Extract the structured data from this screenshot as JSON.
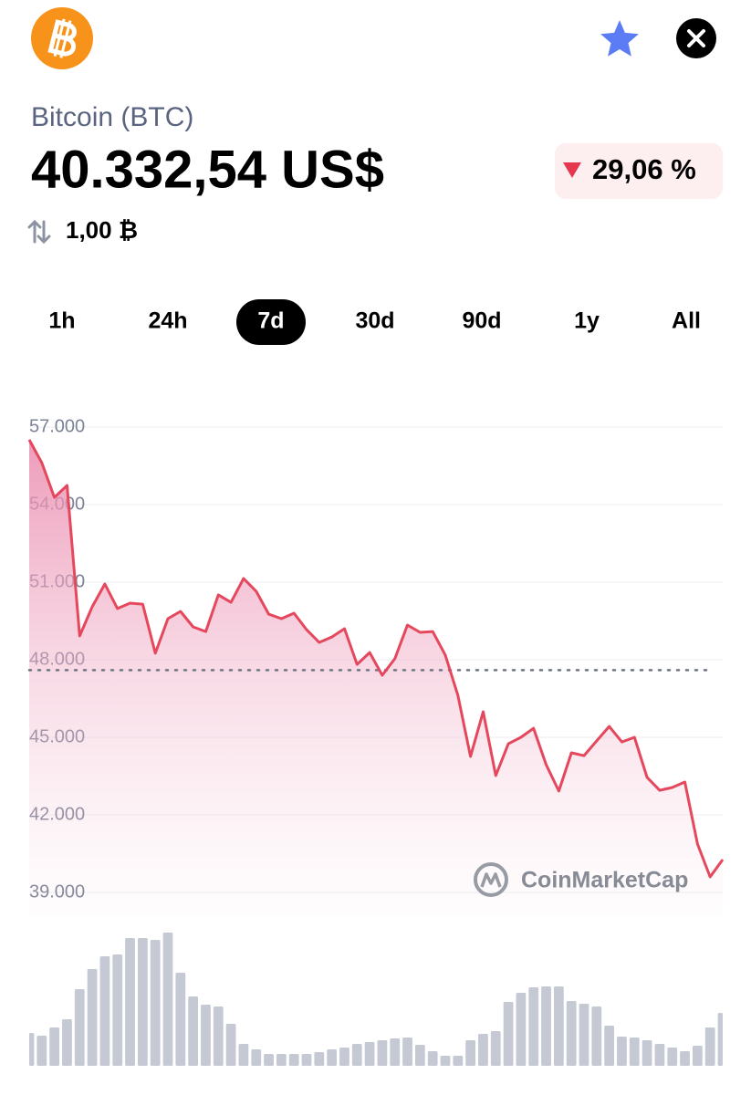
{
  "header": {
    "name": "Bitcoin (BTC)",
    "price": "40.332,54 US$",
    "change": "29,06 %",
    "conversion": "1,00 ₿"
  },
  "tabs": [
    "1h",
    "24h",
    "7d",
    "30d",
    "90d",
    "1y",
    "All"
  ],
  "selected_tab": 2,
  "chart_data": [
    {
      "type": "line",
      "color": "#e5485d",
      "grid": true,
      "watermark": "CoinMarketCap",
      "values": [
        56510,
        55620,
        54280,
        54740,
        48920,
        50050,
        50930,
        49980,
        50190,
        50150,
        48250,
        49590,
        49870,
        49270,
        49090,
        50510,
        50220,
        51140,
        50650,
        49760,
        49590,
        49800,
        49160,
        48670,
        48880,
        49200,
        47820,
        48280,
        47400,
        48040,
        49340,
        49060,
        49090,
        48180,
        46620,
        44260,
        45990,
        43520,
        44750,
        45000,
        45350,
        43940,
        42920,
        44400,
        44290,
        44860,
        45420,
        44820,
        45000,
        43450,
        42950,
        43060,
        43270,
        40870,
        39600,
        40270
      ],
      "reference_line": 47600,
      "ylim": [
        39000,
        57000
      ],
      "yticks": [
        {
          "value": 39000,
          "label": "39.000"
        },
        {
          "value": 42000,
          "label": "42.000"
        },
        {
          "value": 45000,
          "label": "45.000"
        },
        {
          "value": 48000,
          "label": "48.000"
        },
        {
          "value": 51000,
          "label": "51.000"
        },
        {
          "value": 54000,
          "label": "54.000"
        },
        {
          "value": 57000,
          "label": "57.000"
        }
      ]
    },
    {
      "type": "bar",
      "color": "#c5c9d3",
      "values": [
        36,
        33,
        42,
        51,
        84,
        106,
        120,
        122,
        140,
        140,
        138,
        146,
        102,
        76,
        67,
        65,
        46,
        24,
        18,
        13,
        13,
        13,
        13,
        15,
        18,
        20,
        24,
        26,
        28,
        30,
        31,
        23,
        16,
        11,
        11,
        28,
        35,
        38,
        70,
        80,
        86,
        87,
        87,
        71,
        68,
        65,
        44,
        32,
        31,
        28,
        24,
        20,
        16,
        22,
        42,
        58
      ],
      "ylim": [
        0,
        150
      ]
    }
  ]
}
